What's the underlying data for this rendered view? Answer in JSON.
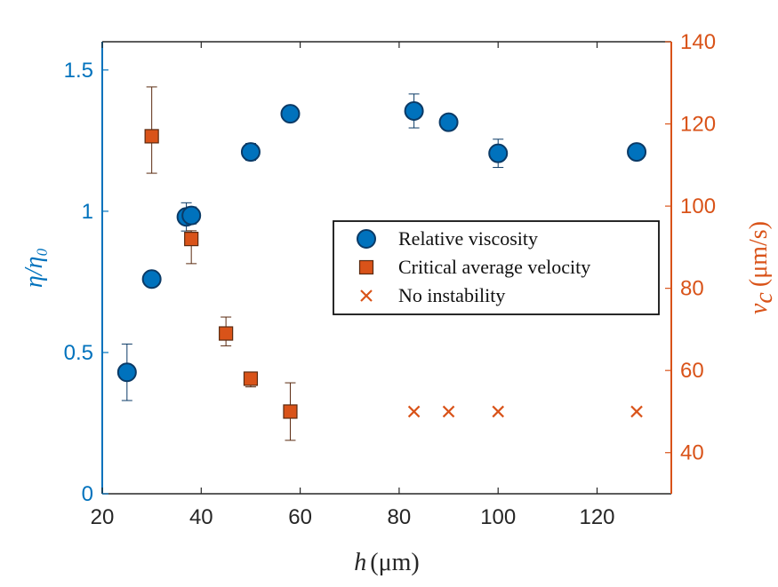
{
  "chart_data": {
    "type": "scatter",
    "x_axis": {
      "label_italic": "h",
      "label_unit": "(μm)",
      "range": [
        20,
        135
      ],
      "ticks": [
        20,
        40,
        60,
        80,
        100,
        120
      ],
      "tick_labels": [
        "20",
        "40",
        "60",
        "80",
        "100",
        "120"
      ]
    },
    "y_axis_left": {
      "label": "η/η₀",
      "color": "#0072BD",
      "range": [
        0,
        1.6
      ],
      "ticks": [
        0,
        0.5,
        1,
        1.5
      ],
      "tick_labels": [
        "0",
        "0.5",
        "1",
        "1.5"
      ]
    },
    "y_axis_right": {
      "label_italic": "v",
      "label_sub": "c",
      "label_unit": "(μm/s)",
      "color": "#D95319",
      "range": [
        30,
        140
      ],
      "ticks": [
        40,
        60,
        80,
        100,
        120,
        140
      ],
      "tick_labels": [
        "40",
        "60",
        "80",
        "100",
        "120",
        "140"
      ]
    },
    "series": [
      {
        "name": "Relative viscosity",
        "axis": "left",
        "marker": "circle",
        "color": "#0072BD",
        "points": [
          {
            "x": 25,
            "y": 0.43,
            "err": 0.1
          },
          {
            "x": 30,
            "y": 0.76,
            "err": 0
          },
          {
            "x": 37,
            "y": 0.98,
            "err": 0.05
          },
          {
            "x": 38,
            "y": 0.985,
            "err": 0.03
          },
          {
            "x": 50,
            "y": 1.21,
            "err": 0.03
          },
          {
            "x": 58,
            "y": 1.345,
            "err": 0
          },
          {
            "x": 83,
            "y": 1.355,
            "err": 0.06
          },
          {
            "x": 90,
            "y": 1.315,
            "err": 0
          },
          {
            "x": 100,
            "y": 1.205,
            "err": 0.05
          },
          {
            "x": 128,
            "y": 1.21,
            "err": 0
          }
        ]
      },
      {
        "name": "Critical average velocity",
        "axis": "right",
        "marker": "square",
        "color": "#D95319",
        "points": [
          {
            "x": 30,
            "y": 117,
            "lo": 108,
            "hi": 129
          },
          {
            "x": 38,
            "y": 92,
            "lo": 86,
            "hi": 94
          },
          {
            "x": 45,
            "y": 69,
            "lo": 66,
            "hi": 73
          },
          {
            "x": 50,
            "y": 58,
            "lo": 56,
            "hi": 59
          },
          {
            "x": 58,
            "y": 50,
            "lo": 43,
            "hi": 57
          }
        ]
      },
      {
        "name": "No instability",
        "axis": "right",
        "marker": "x",
        "color": "#D95319",
        "points": [
          {
            "x": 83,
            "y": 50
          },
          {
            "x": 90,
            "y": 50
          },
          {
            "x": 100,
            "y": 50
          },
          {
            "x": 128,
            "y": 50
          }
        ]
      }
    ],
    "legend": {
      "placement": "center-right",
      "entries": [
        "Relative viscosity",
        "Critical average velocity",
        "No instability"
      ]
    },
    "grid": false
  }
}
